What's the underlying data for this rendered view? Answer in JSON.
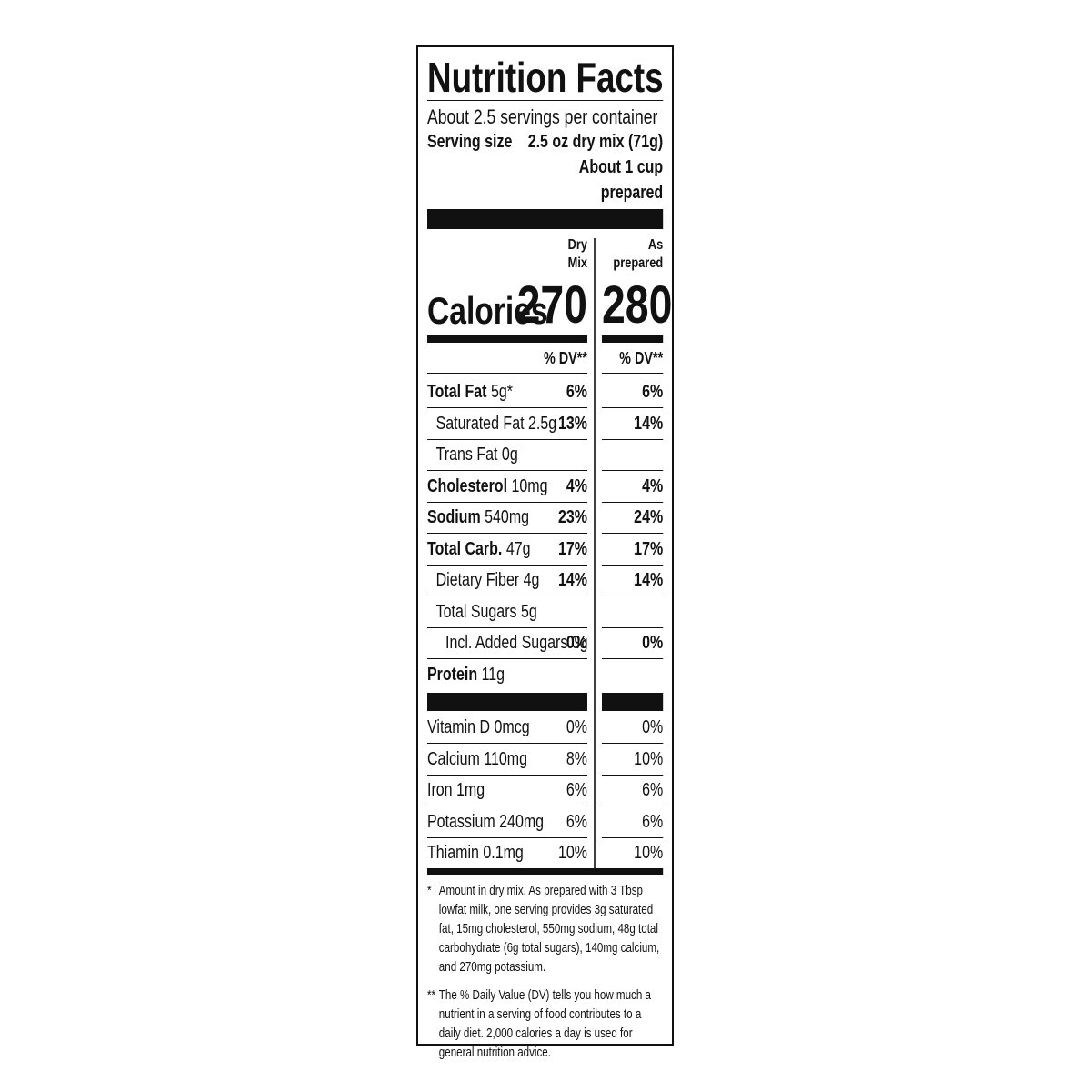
{
  "label": {
    "title": "Nutrition Facts",
    "servings_per_container": "About 2.5 servings per container",
    "serving_size": {
      "label": "Serving size",
      "lines": [
        "2.5 oz dry mix (71g)",
        "About 1 cup",
        "prepared"
      ]
    },
    "columns": [
      "Dry Mix",
      "As prepared"
    ],
    "calories": {
      "label": "Calories",
      "values": [
        270,
        280
      ]
    },
    "dv_header": "% DV**",
    "nutrients": [
      {
        "name": "Total Fat",
        "amount": "5g*",
        "dv": [
          "6%",
          "6%"
        ]
      },
      {
        "name": "Saturated Fat",
        "amount": "2.5g",
        "dv": [
          "13%",
          "14%"
        ]
      },
      {
        "name": "Trans Fat",
        "amount": "0g"
      },
      {
        "name": "Cholesterol",
        "amount": "10mg",
        "dv": [
          "4%",
          "4%"
        ]
      },
      {
        "name": "Sodium",
        "amount": "540mg",
        "dv": [
          "23%",
          "24%"
        ]
      },
      {
        "name": "Total Carb.",
        "amount": "47g",
        "dv": [
          "17%",
          "17%"
        ]
      },
      {
        "name": "Dietary Fiber",
        "amount": "4g",
        "dv": [
          "14%",
          "14%"
        ]
      },
      {
        "name": "Total Sugars",
        "amount": "5g"
      },
      {
        "name": "Incl. Added Sugars",
        "amount": "0g",
        "dv": [
          "0%",
          "0%"
        ]
      },
      {
        "name": "Protein",
        "amount": "11g"
      }
    ],
    "vitamins": [
      {
        "name": "Vitamin D",
        "amount": "0mcg",
        "dv": [
          "0%",
          "0%"
        ]
      },
      {
        "name": "Calcium",
        "amount": "110mg",
        "dv": [
          "8%",
          "10%"
        ]
      },
      {
        "name": "Iron",
        "amount": "1mg",
        "dv": [
          "6%",
          "6%"
        ]
      },
      {
        "name": "Potassium",
        "amount": "240mg",
        "dv": [
          "6%",
          "6%"
        ]
      },
      {
        "name": "Thiamin",
        "amount": "0.1mg",
        "dv": [
          "10%",
          "10%"
        ]
      }
    ],
    "footnotes": [
      {
        "mark": "*",
        "text": "Amount in dry mix. As prepared with 3 Tbsp lowfat milk, one serving provides 3g saturated fat, 15mg cholesterol, 550mg sodium, 48g total carbohydrate (6g total sugars), 140mg calcium, and 270mg potassium."
      },
      {
        "mark": "**",
        "text": "The % Daily Value (DV) tells you how much a nutrient in a serving of food contributes to a daily diet. 2,000 calories a day is used for general nutrition advice."
      }
    ]
  }
}
